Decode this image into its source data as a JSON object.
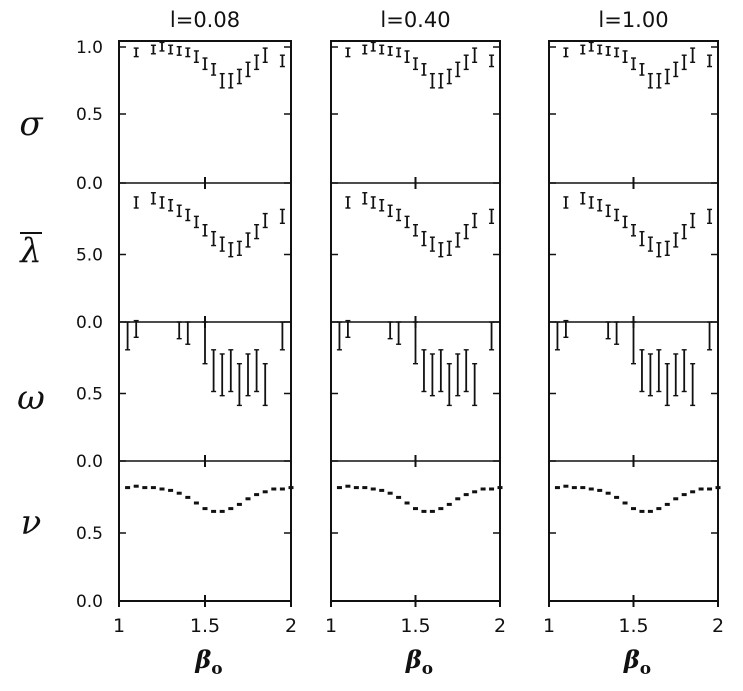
{
  "chart_data": {
    "type": "scatter",
    "columns": [
      {
        "title": "l=0.08"
      },
      {
        "title": "l=0.40"
      },
      {
        "title": "l=1.00"
      }
    ],
    "rows": [
      {
        "label": "σ",
        "ylim": [
          0,
          1
        ],
        "yticks": [
          "0.0",
          "0.5",
          "1.0"
        ],
        "marker": "errorbar"
      },
      {
        "label": "λ",
        "overline": true,
        "ylim": [
          0,
          10
        ],
        "yticks": [
          "0.0",
          "5.0"
        ],
        "marker": "errorbar"
      },
      {
        "label": "ω",
        "ylim": [
          0,
          1
        ],
        "yticks": [
          "0.0",
          "0.5"
        ],
        "inverted": true,
        "marker": "errorbar"
      },
      {
        "label": "ν",
        "ylim": [
          0,
          1
        ],
        "yticks": [
          "0.0",
          "0.5"
        ],
        "marker": "dot"
      }
    ],
    "xlim": [
      1,
      2
    ],
    "xticks": [
      "1",
      "1.5",
      "2"
    ],
    "xlabel": "β",
    "xlabel_subscript": "o",
    "panels": [
      [
        {
          "x": [
            1.1,
            1.2,
            1.25,
            1.3,
            1.35,
            1.4,
            1.45,
            1.5,
            1.55,
            1.6,
            1.65,
            1.7,
            1.75,
            1.8,
            1.85,
            1.95
          ],
          "y": [
            0.92,
            0.94,
            0.96,
            0.94,
            0.93,
            0.92,
            0.89,
            0.84,
            0.8,
            0.72,
            0.72,
            0.75,
            0.8,
            0.85,
            0.9,
            0.86
          ],
          "err": [
            0.03,
            0.03,
            0.03,
            0.03,
            0.03,
            0.03,
            0.04,
            0.04,
            0.04,
            0.05,
            0.05,
            0.05,
            0.05,
            0.05,
            0.05,
            0.04
          ]
        },
        {
          "x": [
            1.1,
            1.2,
            1.25,
            1.3,
            1.35,
            1.4,
            1.45,
            1.5,
            1.55,
            1.6,
            1.65,
            1.7,
            1.75,
            1.8,
            1.85,
            1.95
          ],
          "y": [
            8.6,
            8.9,
            8.6,
            8.4,
            8.0,
            7.7,
            7.2,
            6.6,
            6.0,
            5.6,
            5.2,
            5.3,
            5.9,
            6.5,
            7.3,
            7.6
          ],
          "err": [
            0.4,
            0.4,
            0.4,
            0.4,
            0.4,
            0.4,
            0.4,
            0.4,
            0.5,
            0.5,
            0.5,
            0.5,
            0.5,
            0.5,
            0.5,
            0.5
          ]
        },
        {
          "x": [
            1.05,
            1.1,
            1.35,
            1.4,
            1.5,
            1.55,
            1.6,
            1.65,
            1.7,
            1.75,
            1.8,
            1.85,
            1.95
          ],
          "y": [
            0.1,
            0.05,
            0.06,
            0.08,
            0.15,
            0.35,
            0.38,
            0.35,
            0.45,
            0.38,
            0.35,
            0.45,
            0.1
          ],
          "err": [
            0.1,
            0.06,
            0.06,
            0.08,
            0.15,
            0.15,
            0.15,
            0.15,
            0.15,
            0.15,
            0.15,
            0.15,
            0.1
          ]
        },
        {
          "x": [
            1.05,
            1.1,
            1.15,
            1.2,
            1.25,
            1.3,
            1.35,
            1.4,
            1.45,
            1.5,
            1.55,
            1.6,
            1.65,
            1.7,
            1.75,
            1.8,
            1.85,
            1.9,
            1.95,
            2.0
          ],
          "y": [
            0.81,
            0.82,
            0.81,
            0.81,
            0.8,
            0.79,
            0.77,
            0.74,
            0.7,
            0.66,
            0.64,
            0.64,
            0.66,
            0.69,
            0.73,
            0.76,
            0.78,
            0.8,
            0.8,
            0.81
          ],
          "err": []
        }
      ],
      [
        {
          "x": [
            1.1,
            1.2,
            1.25,
            1.3,
            1.35,
            1.4,
            1.45,
            1.5,
            1.55,
            1.6,
            1.65,
            1.7,
            1.75,
            1.8,
            1.85,
            1.95
          ],
          "y": [
            0.92,
            0.94,
            0.96,
            0.94,
            0.93,
            0.92,
            0.89,
            0.84,
            0.8,
            0.72,
            0.72,
            0.75,
            0.8,
            0.85,
            0.9,
            0.86
          ],
          "err": [
            0.03,
            0.03,
            0.03,
            0.03,
            0.03,
            0.03,
            0.04,
            0.04,
            0.04,
            0.05,
            0.05,
            0.05,
            0.05,
            0.05,
            0.05,
            0.04
          ]
        },
        {
          "x": [
            1.1,
            1.2,
            1.25,
            1.3,
            1.35,
            1.4,
            1.45,
            1.5,
            1.55,
            1.6,
            1.65,
            1.7,
            1.75,
            1.8,
            1.85,
            1.95
          ],
          "y": [
            8.6,
            8.9,
            8.6,
            8.4,
            8.0,
            7.7,
            7.2,
            6.6,
            6.0,
            5.6,
            5.2,
            5.3,
            5.9,
            6.5,
            7.3,
            7.6
          ],
          "err": [
            0.4,
            0.4,
            0.4,
            0.4,
            0.4,
            0.4,
            0.4,
            0.4,
            0.5,
            0.5,
            0.5,
            0.5,
            0.5,
            0.5,
            0.5,
            0.5
          ]
        },
        {
          "x": [
            1.05,
            1.1,
            1.35,
            1.4,
            1.5,
            1.55,
            1.6,
            1.65,
            1.7,
            1.75,
            1.8,
            1.85,
            1.95
          ],
          "y": [
            0.1,
            0.05,
            0.06,
            0.08,
            0.15,
            0.35,
            0.38,
            0.35,
            0.45,
            0.38,
            0.35,
            0.45,
            0.1
          ],
          "err": [
            0.1,
            0.06,
            0.06,
            0.08,
            0.15,
            0.15,
            0.15,
            0.15,
            0.15,
            0.15,
            0.15,
            0.15,
            0.1
          ]
        },
        {
          "x": [
            1.05,
            1.1,
            1.15,
            1.2,
            1.25,
            1.3,
            1.35,
            1.4,
            1.45,
            1.5,
            1.55,
            1.6,
            1.65,
            1.7,
            1.75,
            1.8,
            1.85,
            1.9,
            1.95,
            2.0
          ],
          "y": [
            0.81,
            0.82,
            0.81,
            0.81,
            0.8,
            0.79,
            0.77,
            0.74,
            0.7,
            0.66,
            0.64,
            0.64,
            0.66,
            0.69,
            0.73,
            0.76,
            0.78,
            0.8,
            0.8,
            0.81
          ],
          "err": []
        }
      ],
      [
        {
          "x": [
            1.1,
            1.2,
            1.25,
            1.3,
            1.35,
            1.4,
            1.45,
            1.5,
            1.55,
            1.6,
            1.65,
            1.7,
            1.75,
            1.8,
            1.85,
            1.95
          ],
          "y": [
            0.92,
            0.94,
            0.96,
            0.94,
            0.93,
            0.92,
            0.89,
            0.84,
            0.8,
            0.72,
            0.72,
            0.75,
            0.8,
            0.85,
            0.9,
            0.86
          ],
          "err": [
            0.03,
            0.03,
            0.03,
            0.03,
            0.03,
            0.03,
            0.04,
            0.04,
            0.04,
            0.05,
            0.05,
            0.05,
            0.05,
            0.05,
            0.05,
            0.04
          ]
        },
        {
          "x": [
            1.1,
            1.2,
            1.25,
            1.3,
            1.35,
            1.4,
            1.45,
            1.5,
            1.55,
            1.6,
            1.65,
            1.7,
            1.75,
            1.8,
            1.85,
            1.95
          ],
          "y": [
            8.6,
            8.9,
            8.6,
            8.4,
            8.0,
            7.7,
            7.2,
            6.6,
            6.0,
            5.6,
            5.2,
            5.3,
            5.9,
            6.5,
            7.3,
            7.6
          ],
          "err": [
            0.4,
            0.4,
            0.4,
            0.4,
            0.4,
            0.4,
            0.4,
            0.4,
            0.5,
            0.5,
            0.5,
            0.5,
            0.5,
            0.5,
            0.5,
            0.5
          ]
        },
        {
          "x": [
            1.05,
            1.1,
            1.35,
            1.4,
            1.5,
            1.55,
            1.6,
            1.65,
            1.7,
            1.75,
            1.8,
            1.85,
            1.95
          ],
          "y": [
            0.1,
            0.05,
            0.06,
            0.08,
            0.15,
            0.35,
            0.38,
            0.35,
            0.45,
            0.38,
            0.35,
            0.45,
            0.1
          ],
          "err": [
            0.1,
            0.06,
            0.06,
            0.08,
            0.15,
            0.15,
            0.15,
            0.15,
            0.15,
            0.15,
            0.15,
            0.15,
            0.1
          ]
        },
        {
          "x": [
            1.05,
            1.1,
            1.15,
            1.2,
            1.25,
            1.3,
            1.35,
            1.4,
            1.45,
            1.5,
            1.55,
            1.6,
            1.65,
            1.7,
            1.75,
            1.8,
            1.85,
            1.9,
            1.95,
            2.0
          ],
          "y": [
            0.81,
            0.82,
            0.81,
            0.81,
            0.8,
            0.79,
            0.77,
            0.74,
            0.7,
            0.66,
            0.64,
            0.64,
            0.66,
            0.69,
            0.73,
            0.76,
            0.78,
            0.8,
            0.8,
            0.81
          ],
          "err": []
        }
      ]
    ],
    "colors": {
      "ink": "#111111",
      "background": "#ffffff"
    }
  }
}
